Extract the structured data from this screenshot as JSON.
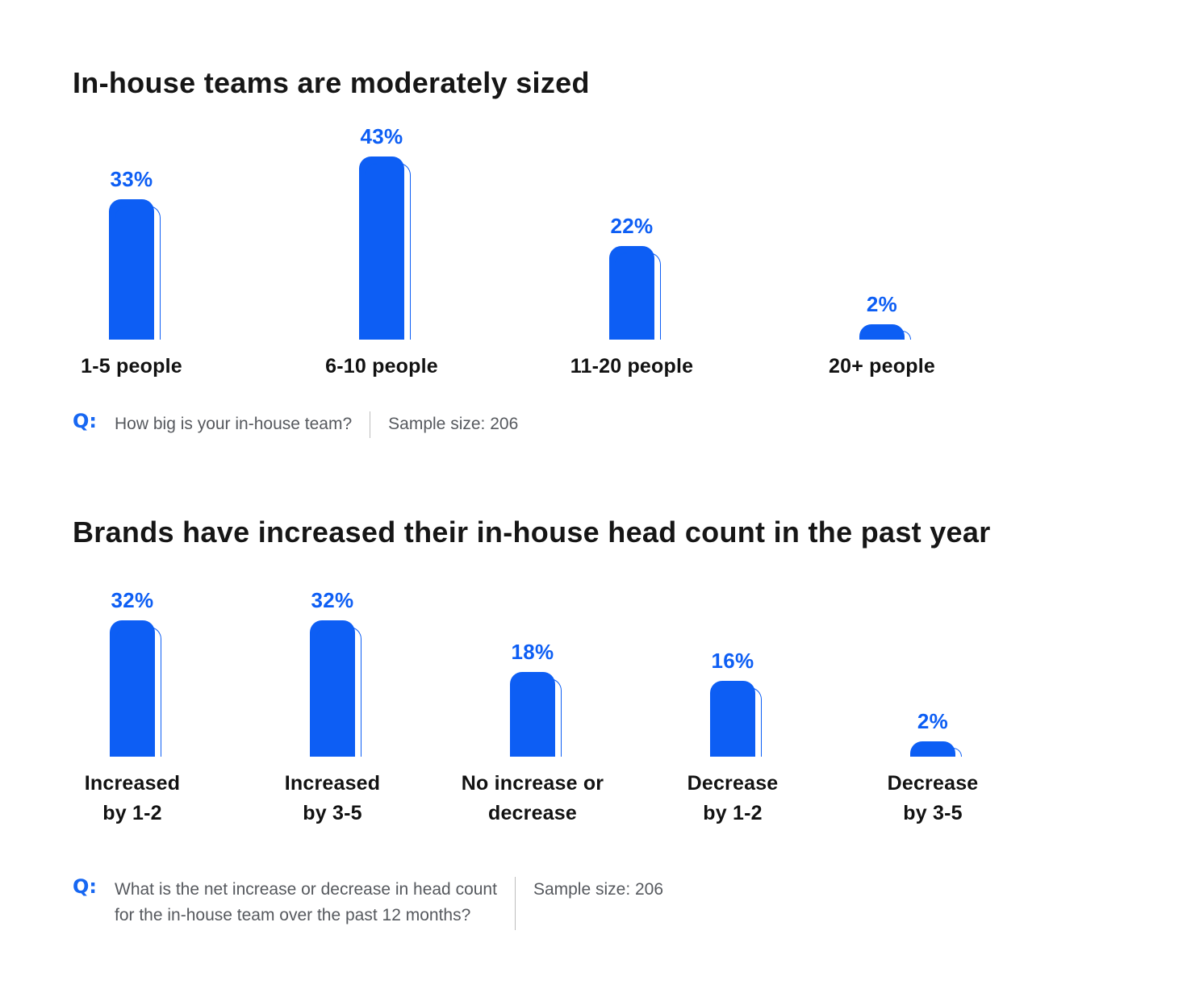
{
  "colors": {
    "accent_blue": "#0d5ef4",
    "q_badge_blue": "#1767f2",
    "title_text": "#161616",
    "category_text": "#121212",
    "footnote_gray": "#56595e",
    "divider_gray": "#bdbdbd",
    "background": "#ffffff"
  },
  "chart_data": [
    {
      "type": "bar",
      "title": "In-house teams are moderately sized",
      "categories": [
        "1-5 people",
        "6-10 people",
        "11-20 people",
        "20+ people"
      ],
      "values": [
        33,
        43,
        22,
        2
      ],
      "value_labels": [
        "33%",
        "43%",
        "22%",
        "2%"
      ],
      "unit": "%",
      "ylim": [
        0,
        43
      ],
      "grid": false,
      "legend": false,
      "q_label": "Q:",
      "question": "How big is your in-house team?",
      "sample_size_label": "Sample size: 206",
      "sample_size": 206
    },
    {
      "type": "bar",
      "title": "Brands have increased their in-house head count in the past year",
      "categories": [
        "Increased\nby 1-2",
        "Increased\nby 3-5",
        "No increase or\ndecrease",
        "Decrease\nby 1-2",
        "Decrease\nby 3-5"
      ],
      "values": [
        32,
        32,
        18,
        16,
        2
      ],
      "value_labels": [
        "32%",
        "32%",
        "18%",
        "16%",
        "2%"
      ],
      "unit": "%",
      "ylim": [
        0,
        32
      ],
      "grid": false,
      "legend": false,
      "q_label": "Q:",
      "question": "What is the net increase or decrease in head count\nfor the in-house team over the past 12 months?",
      "sample_size_label": "Sample size: 206",
      "sample_size": 206
    }
  ]
}
